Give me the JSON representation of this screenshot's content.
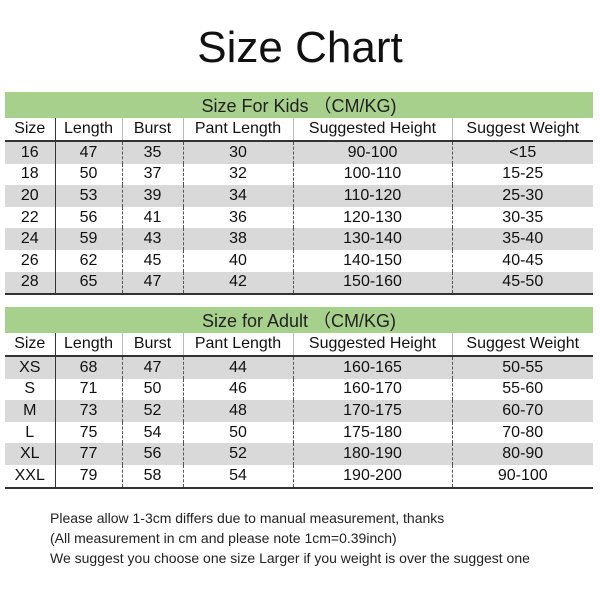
{
  "title": "Size Chart",
  "columns": [
    "Size",
    "Length",
    "Burst",
    "Pant Length",
    "Suggested Height",
    "Suggest Weight"
  ],
  "kids": {
    "heading": "Size For Kids （CM/KG)",
    "rows": [
      [
        "16",
        "47",
        "35",
        "30",
        "90-100",
        "<15"
      ],
      [
        "18",
        "50",
        "37",
        "32",
        "100-110",
        "15-25"
      ],
      [
        "20",
        "53",
        "39",
        "34",
        "110-120",
        "25-30"
      ],
      [
        "22",
        "56",
        "41",
        "36",
        "120-130",
        "30-35"
      ],
      [
        "24",
        "59",
        "43",
        "38",
        "130-140",
        "35-40"
      ],
      [
        "26",
        "62",
        "45",
        "40",
        "140-150",
        "40-45"
      ],
      [
        "28",
        "65",
        "47",
        "42",
        "150-160",
        "45-50"
      ]
    ]
  },
  "adult": {
    "heading": "Size for Adult （CM/KG)",
    "rows": [
      [
        "XS",
        "68",
        "47",
        "44",
        "160-165",
        "50-55"
      ],
      [
        "S",
        "71",
        "50",
        "46",
        "160-170",
        "55-60"
      ],
      [
        "M",
        "73",
        "52",
        "48",
        "170-175",
        "60-70"
      ],
      [
        "L",
        "75",
        "54",
        "50",
        "175-180",
        "70-80"
      ],
      [
        "XL",
        "77",
        "56",
        "52",
        "180-190",
        "80-90"
      ],
      [
        "XXL",
        "79",
        "58",
        "54",
        "190-200",
        "90-100"
      ]
    ]
  },
  "notes": [
    "Please allow 1-3cm differs due to manual measurement, thanks",
    "(All measurement in cm and please note 1cm=0.39inch)",
    "We suggest you choose one size Larger if you weight is over the suggest one"
  ],
  "colors": {
    "band": "#a8d08d",
    "shade": "#d9d9d9"
  }
}
